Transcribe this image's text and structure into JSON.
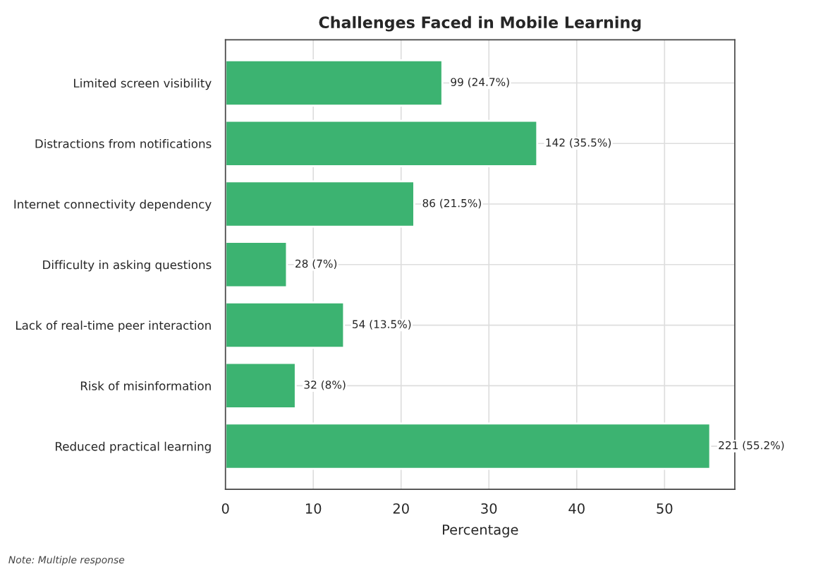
{
  "chart_data": {
    "type": "bar",
    "orientation": "horizontal",
    "title": "Challenges Faced in Mobile Learning",
    "xlabel": "Percentage",
    "categories": [
      "Limited screen visibility",
      "Distractions from notifications",
      "Internet connectivity dependency",
      "Difficulty in asking questions",
      "Lack of real-time peer interaction",
      "Risk of misinformation",
      "Reduced practical learning"
    ],
    "values": [
      24.7,
      35.5,
      21.5,
      7,
      13.5,
      8,
      55.2
    ],
    "value_labels": [
      "99 (24.7%)",
      "142 (35.5%)",
      "86 (21.5%)",
      "28 (7%)",
      "54 (13.5%)",
      "32 (8%)",
      "221 (55.2%)"
    ],
    "color": "#3cb371",
    "xlim": [
      0,
      58
    ],
    "xticks": [
      0,
      10,
      20,
      30,
      40,
      50
    ],
    "grid": true,
    "annotations": [
      "Note: Multiple response"
    ]
  }
}
